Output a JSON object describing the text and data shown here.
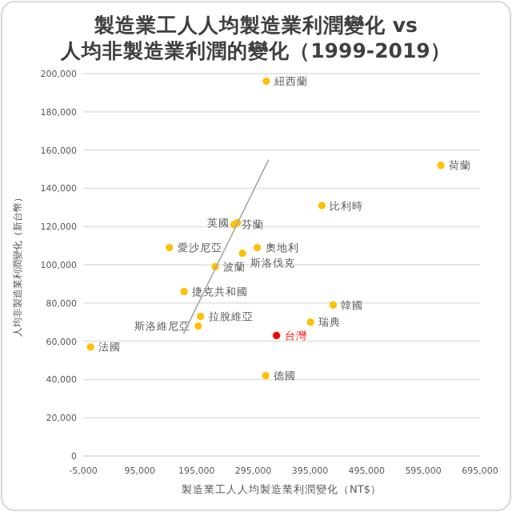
{
  "chart_data": {
    "type": "scatter",
    "title": "製造業工人人均製造業利潤變化 vs 人均非製造業利潤的變化（1999-2019）",
    "xlabel": "製造業工人人均製造業利潤變化（NT$）",
    "ylabel": "人均非製造業利潤變化（新台幣）",
    "xlim": [
      -5000,
      695000
    ],
    "ylim": [
      0,
      200000
    ],
    "xticks": [
      {
        "value": -5000,
        "label": "-5,000"
      },
      {
        "value": 95000,
        "label": "95,000"
      },
      {
        "value": 195000,
        "label": "195,000"
      },
      {
        "value": 295000,
        "label": "295,000"
      },
      {
        "value": 395000,
        "label": "395,000"
      },
      {
        "value": 495000,
        "label": "495,000"
      },
      {
        "value": 595000,
        "label": "595,000"
      },
      {
        "value": 695000,
        "label": "695,000"
      }
    ],
    "yticks": [
      {
        "value": 0,
        "label": "0"
      },
      {
        "value": 20000,
        "label": "20,000"
      },
      {
        "value": 40000,
        "label": "40,000"
      },
      {
        "value": 60000,
        "label": "60,000"
      },
      {
        "value": 80000,
        "label": "80,000"
      },
      {
        "value": 100000,
        "label": "100,000"
      },
      {
        "value": 120000,
        "label": "120,000"
      },
      {
        "value": 140000,
        "label": "140,000"
      },
      {
        "value": 160000,
        "label": "160,000"
      },
      {
        "value": 180000,
        "label": "180,000"
      },
      {
        "value": 200000,
        "label": "200,000"
      }
    ],
    "grid": "y",
    "marker": "circle",
    "series": [
      {
        "name": "紐西蘭",
        "color": "#ffc000",
        "x": [
          318000
        ],
        "values": [
          196000
        ]
      },
      {
        "name": "荷蘭",
        "color": "#ffc000",
        "x": [
          626000
        ],
        "values": [
          152000
        ]
      },
      {
        "name": "比利時",
        "color": "#ffc000",
        "x": [
          416000
        ],
        "values": [
          131000
        ]
      },
      {
        "name": "芬蘭",
        "color": "#ffc000",
        "x": [
          261000
        ],
        "values": [
          121000
        ]
      },
      {
        "name": "英國",
        "color": "#ffc000",
        "x": [
          267000
        ],
        "values": [
          122000
        ]
      },
      {
        "name": "愛沙尼亞",
        "color": "#ffc000",
        "x": [
          147000
        ],
        "values": [
          109000
        ]
      },
      {
        "name": "奧地利",
        "color": "#ffc000",
        "x": [
          302000
        ],
        "values": [
          109000
        ]
      },
      {
        "name": "斯洛伐克",
        "color": "#ffc000",
        "x": [
          276000
        ],
        "values": [
          106000
        ]
      },
      {
        "name": "波蘭",
        "color": "#ffc000",
        "x": [
          228000
        ],
        "values": [
          99000
        ]
      },
      {
        "name": "捷克共和國",
        "color": "#ffc000",
        "x": [
          173000
        ],
        "values": [
          86000
        ]
      },
      {
        "name": "韓國",
        "color": "#ffc000",
        "x": [
          436000
        ],
        "values": [
          79000
        ]
      },
      {
        "name": "拉脫維亞",
        "color": "#ffc000",
        "x": [
          202000
        ],
        "values": [
          73000
        ]
      },
      {
        "name": "瑞典",
        "color": "#ffc000",
        "x": [
          396000
        ],
        "values": [
          70000
        ]
      },
      {
        "name": "斯洛維尼亞",
        "color": "#ffc000",
        "x": [
          198000
        ],
        "values": [
          68000
        ]
      },
      {
        "name": "台灣",
        "color": "#ff0000",
        "x": [
          336000
        ],
        "values": [
          63000
        ]
      },
      {
        "name": "法國",
        "color": "#ffc000",
        "x": [
          8000
        ],
        "values": [
          57000
        ]
      },
      {
        "name": "德國",
        "color": "#ffc000",
        "x": [
          317000
        ],
        "values": [
          42000
        ]
      },
      {
        "type": "line",
        "marker": "none",
        "color": "#a6a6a6",
        "x": [
          172000,
          322000
        ],
        "values": [
          64000,
          155000
        ]
      }
    ]
  }
}
